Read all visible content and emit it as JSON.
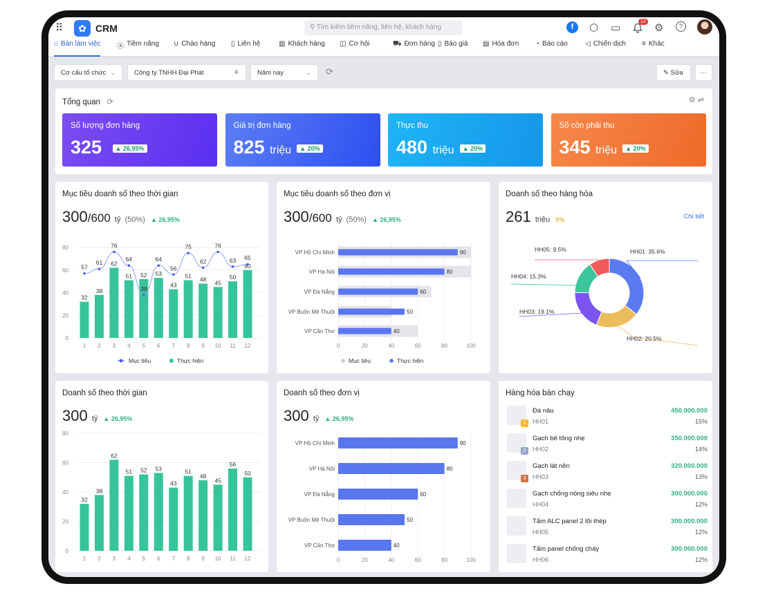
{
  "app": {
    "title": "CRM",
    "search_placeholder": "Tìm kiếm tiềm năng, liên hệ, khách hàng",
    "notification_count": "12"
  },
  "nav": [
    {
      "label": "Bàn làm việc",
      "icon": "home-icon",
      "active": true
    },
    {
      "label": "Tiềm năng",
      "icon": "user-circle-icon"
    },
    {
      "label": "Chào hàng",
      "icon": "magnet-icon"
    },
    {
      "label": "Liên hệ",
      "icon": "contact-icon"
    },
    {
      "label": "Khách hàng",
      "icon": "building-icon"
    },
    {
      "label": "Cơ hội",
      "icon": "bag-icon"
    },
    {
      "label": "Đơn hàng",
      "icon": "cart-icon"
    },
    {
      "label": "Báo giá",
      "icon": "quote-icon"
    },
    {
      "label": "Hóa đơn",
      "icon": "invoice-icon"
    },
    {
      "label": "Báo cáo",
      "icon": "pie-icon"
    },
    {
      "label": "Chiến dịch",
      "icon": "megaphone-icon"
    },
    {
      "label": "Khác",
      "icon": "menu-icon"
    }
  ],
  "filters": {
    "org": "Cơ cấu tổ chức",
    "company": "Công ty TNHH Đại Phát",
    "period": "Năm nay",
    "edit": "Sửa",
    "more": "···"
  },
  "overview": {
    "title": "Tổng quan",
    "kpis": [
      {
        "label": "Số lượng đơn hàng",
        "value": "325",
        "unit": "",
        "change": "26,95%",
        "colors": [
          "#7b4df0",
          "#5a2ff0"
        ]
      },
      {
        "label": "Giá trị đơn hàng",
        "value": "825",
        "unit": "triệu",
        "change": "20%",
        "colors": [
          "#5b7ef5",
          "#2e4ff0"
        ]
      },
      {
        "label": "Thực thu",
        "value": "480",
        "unit": "triệu",
        "change": "20%",
        "colors": [
          "#1fb5f5",
          "#1596ea"
        ]
      },
      {
        "label": "Số còn phải thu",
        "value": "345",
        "unit": "triệu",
        "change": "20%",
        "colors": [
          "#f6884a",
          "#ee6a2a"
        ]
      }
    ]
  },
  "cards": {
    "c1": {
      "title": "Mục tiêu doanh số theo thời gian",
      "value": "300",
      "target": "/600",
      "unit": "tỷ",
      "pct": "(50%)",
      "change": "26,95%"
    },
    "c2": {
      "title": "Mục tiêu doanh số theo đơn vị",
      "value": "300",
      "target": "/600",
      "unit": "tỷ",
      "pct": "(50%)",
      "change": "26,95%"
    },
    "c3": {
      "title": "Doanh số theo hàng hóa",
      "value": "261",
      "unit": "triệu",
      "change": "0%",
      "link": "Chi tiết"
    },
    "c4": {
      "title": "Doanh số theo thời gian",
      "value": "300",
      "unit": "tỷ",
      "change": "26,95%"
    },
    "c5": {
      "title": "Doanh số theo đơn vị",
      "value": "300",
      "unit": "tỷ",
      "change": "26,95%"
    },
    "c6": {
      "title": "Hàng hóa bán chạy",
      "items": [
        {
          "name": "Đá nâu",
          "code": "HH01",
          "amount": "450.000.000",
          "pct": "15%",
          "rank": "1"
        },
        {
          "name": "Gạch bê tông nhẹ",
          "code": "HH02",
          "amount": "350.000.000",
          "pct": "14%",
          "rank": "2"
        },
        {
          "name": "Gạch lát nền",
          "code": "HH03",
          "amount": "320.000.000",
          "pct": "13%",
          "rank": "3"
        },
        {
          "name": "Gạch chống nóng siêu nhẹ",
          "code": "HH04",
          "amount": "300.000.000",
          "pct": "12%"
        },
        {
          "name": "Tấm ALC panel 2 lõi thép",
          "code": "HH05",
          "amount": "300.000.000",
          "pct": "12%"
        },
        {
          "name": "Tấm panel chống cháy",
          "code": "HH06",
          "amount": "300.000.000",
          "pct": "12%"
        }
      ]
    }
  },
  "chart_data": [
    {
      "type": "bar+line",
      "categories": [
        "1",
        "2",
        "3",
        "4",
        "5",
        "6",
        "7",
        "8",
        "9",
        "10",
        "11",
        "12"
      ],
      "ylim": [
        0,
        80
      ],
      "yticks": [
        0,
        20,
        40,
        60,
        80
      ],
      "legend": "bottom",
      "series": [
        {
          "name": "Mục tiêu",
          "type": "line",
          "color": "#4a63e0",
          "values": [
            57,
            61,
            76,
            64,
            38,
            64,
            56,
            75,
            62,
            76,
            63,
            65
          ]
        },
        {
          "name": "Thực hiện",
          "type": "bar",
          "color": "#36c59b",
          "values": [
            32,
            38,
            62,
            51,
            52,
            53,
            43,
            51,
            48,
            45,
            50,
            60
          ]
        }
      ]
    },
    {
      "type": "hbar",
      "categories": [
        "VP Hồ Chí Minh",
        "VP Hà Nội",
        "VP Đà Nẵng",
        "VP  Buôn Mê Thuột",
        "VP Cần Thơ"
      ],
      "xlim": [
        0,
        100
      ],
      "xticks": [
        0,
        20,
        40,
        60,
        80,
        100
      ],
      "legend": "bottom",
      "series": [
        {
          "name": "Mục tiêu",
          "color": "#e4e5e9",
          "values": [
            100,
            100,
            70,
            40,
            60
          ]
        },
        {
          "name": "Thực hiện",
          "color": "#5a76ee",
          "values": [
            90,
            80,
            60,
            50,
            40
          ]
        }
      ]
    },
    {
      "type": "pie",
      "donut": true,
      "labels": [
        "HH01",
        "HH02",
        "HH03",
        "HH04",
        "HH05"
      ],
      "values": [
        35.6,
        20.5,
        19.1,
        15.3,
        9.5
      ],
      "colors": [
        "#5a7bf0",
        "#ebbd5c",
        "#7b55ee",
        "#3cc69c",
        "#ef5b5b"
      ]
    },
    {
      "type": "bar",
      "categories": [
        "1",
        "2",
        "3",
        "4",
        "5",
        "6",
        "7",
        "8",
        "9",
        "10",
        "11",
        "12"
      ],
      "ylim": [
        0,
        80
      ],
      "yticks": [
        0,
        20,
        40,
        60,
        80
      ],
      "values": [
        32,
        38,
        62,
        51,
        52,
        53,
        43,
        51,
        48,
        45,
        56,
        50
      ],
      "color": "#36c59b"
    },
    {
      "type": "hbar",
      "categories": [
        "VP Hồ Chí Minh",
        "VP Hà Nội",
        "VP Đà Nẵng",
        "VP  Buôn Mê Thuột",
        "VP Cần Thơ"
      ],
      "xlim": [
        0,
        100
      ],
      "xticks": [
        0,
        20,
        40,
        60,
        80,
        100
      ],
      "values": [
        90,
        80,
        60,
        50,
        40
      ],
      "color": "#5a76ee"
    }
  ]
}
